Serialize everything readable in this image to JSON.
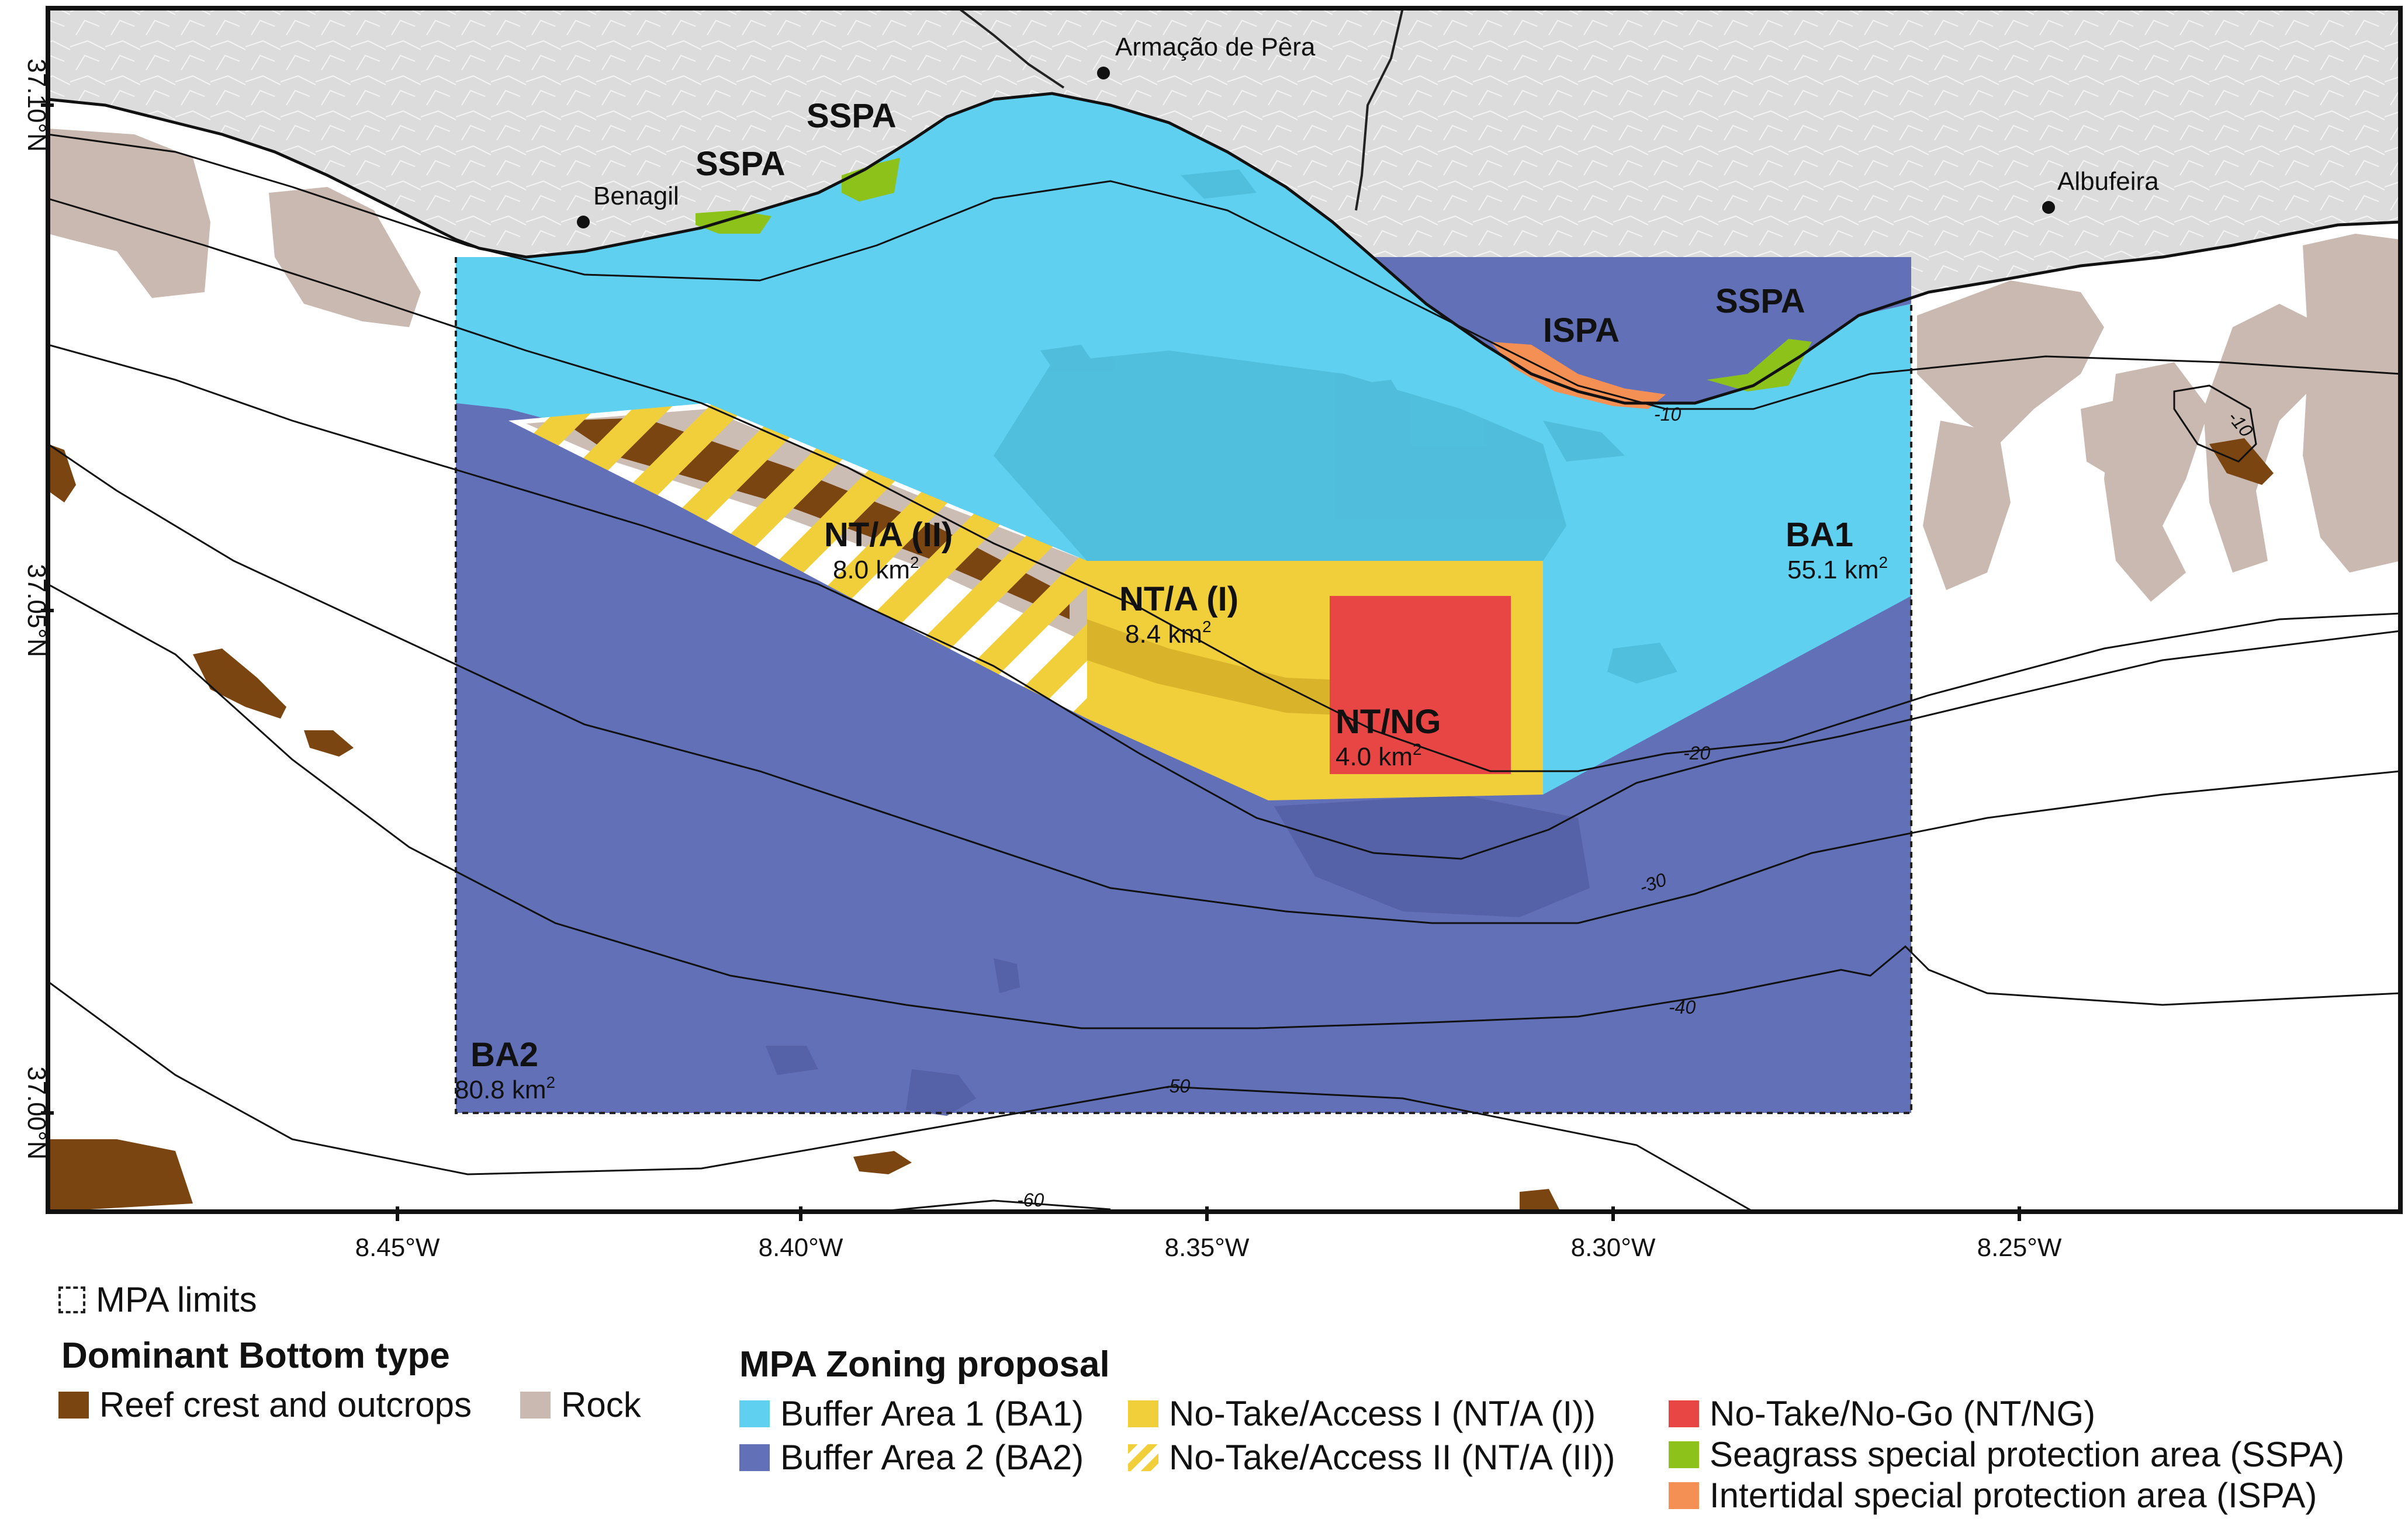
{
  "latitude_labels": [
    "37.10°N",
    "37.05°N",
    "37.00°N"
  ],
  "longitude_labels": [
    "8.45°W",
    "8.40°W",
    "8.35°W",
    "8.30°W",
    "8.25°W"
  ],
  "places": {
    "armacao": "Armação de Pêra",
    "benagil": "Benagil",
    "albufeira": "Albufeira"
  },
  "zones": {
    "sspa_1": "SSPA",
    "sspa_2": "SSPA",
    "sspa_3": "SSPA",
    "ispa": "ISPA",
    "ba1": {
      "name": "BA1",
      "area": "55.1 km",
      "sup": "2"
    },
    "ba2": {
      "name": "BA2",
      "area": "80.8 km",
      "sup": "2"
    },
    "nta2": {
      "name": "NT/A (II)",
      "area": "8.0 km",
      "sup": "2"
    },
    "nta1": {
      "name": "NT/A (I)",
      "area": "8.4 km",
      "sup": "2"
    },
    "ntng": {
      "name": "NT/NG",
      "area": "4.0 km",
      "sup": "2"
    }
  },
  "contours": [
    "-10",
    "-10",
    "-20",
    "-30",
    "-40",
    "-50",
    "-60"
  ],
  "legend": {
    "mpa_limits": "MPA limits",
    "bottom_type_title": "Dominant Bottom type",
    "reef": "Reef crest and outcrops",
    "rock": "Rock",
    "zoning_title": "MPA Zoning proposal",
    "ba1": "Buffer Area 1 (BA1)",
    "ba2": "Buffer Area 2 (BA2)",
    "nta1": "No-Take/Access  I (NT/A (I))",
    "nta2": "No-Take/Access II (NT/A (II))",
    "ntng": "No-Take/No-Go (NT/NG)",
    "sspa": "Seagrass special protection area (SSPA)",
    "ispa": "Intertidal special protection area (ISPA)"
  },
  "colors": {
    "ba1": "#5fd0f0",
    "ba2": "#6270b8",
    "nta1": "#f0cf3a",
    "ntng": "#e84545",
    "sspa": "#8cc21a",
    "ispa": "#f59055",
    "reef": "#7a4510",
    "rock": "#c9b9b0",
    "land": "#dcdcdc"
  }
}
